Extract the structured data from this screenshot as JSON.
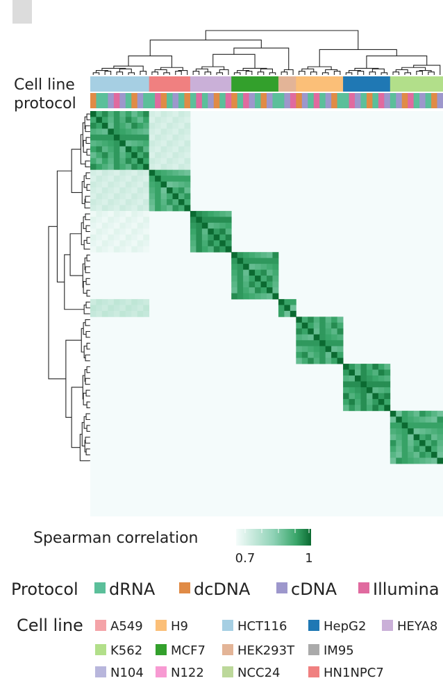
{
  "chart_data": {
    "type": "heatmap",
    "title": "",
    "row_labels": [
      "Cell line",
      "protocol"
    ],
    "colorbar": {
      "label": "Spearman correlation",
      "ticks": [
        "0.7",
        "1"
      ],
      "range": [
        0.7,
        1
      ]
    },
    "clusters": [
      {
        "cell_line": "HCT116",
        "n": 10,
        "intra_mean": 0.93
      },
      {
        "cell_line": "HN1NPC7",
        "n": 7,
        "intra_mean": 0.92
      },
      {
        "cell_line": "HEYA8",
        "n": 7,
        "intra_mean": 0.94
      },
      {
        "cell_line": "MCF7",
        "n": 8,
        "intra_mean": 0.93
      },
      {
        "cell_line": "HEK293T",
        "n": 3,
        "intra_mean": 0.92
      },
      {
        "cell_line": "H9",
        "n": 8,
        "intra_mean": 0.93
      },
      {
        "cell_line": "HepG2",
        "n": 8,
        "intra_mean": 0.94
      },
      {
        "cell_line": "K562",
        "n": 9,
        "intra_mean": 0.92
      }
    ],
    "protocol_sequence": [
      "dcDNA",
      "dRNA",
      "dRNA",
      "cDNA",
      "Illumina",
      "cDNA",
      "dRNA",
      "dcDNA",
      "cDNA",
      "dRNA",
      "dRNA",
      "Illumina",
      "dcDNA",
      "dRNA",
      "cDNA",
      "dRNA",
      "dcDNA",
      "dRNA",
      "Illumina",
      "dRNA",
      "cDNA",
      "dcDNA",
      "dRNA",
      "Illumina",
      "dcDNA",
      "dRNA",
      "Illumina",
      "cDNA",
      "dRNA",
      "dcDNA",
      "cDNA",
      "dRNA",
      "dRNA",
      "cDNA",
      "Illumina",
      "dcDNA",
      "cDNA",
      "dRNA",
      "Illumina",
      "dRNA",
      "cDNA",
      "dcDNA",
      "dRNA",
      "dRNA",
      "Illumina",
      "cDNA",
      "dRNA",
      "dcDNA",
      "dRNA",
      "Illumina",
      "cDNA",
      "dRNA",
      "cDNA",
      "dcDNA",
      "Illumina",
      "dRNA",
      "cDNA",
      "dRNA",
      "dcDNA",
      "cDNA"
    ],
    "legend_protocol": {
      "title": "Protocol",
      "items": [
        {
          "name": "dRNA",
          "color": "#5bbf9a"
        },
        {
          "name": "dcDNA",
          "color": "#e08b46"
        },
        {
          "name": "cDNA",
          "color": "#9d97cc"
        },
        {
          "name": "Illumina",
          "color": "#e06a9f"
        }
      ]
    },
    "legend_cell_line": {
      "title": "Cell line",
      "items": [
        {
          "name": "A549",
          "color": "#f4a3a8"
        },
        {
          "name": "H9",
          "color": "#fbbf78"
        },
        {
          "name": "HCT116",
          "color": "#a6cfe3"
        },
        {
          "name": "HepG2",
          "color": "#1f78b4"
        },
        {
          "name": "HEYA8",
          "color": "#cab0d8"
        },
        {
          "name": "K562",
          "color": "#b2df8a"
        },
        {
          "name": "MCF7",
          "color": "#33a02c"
        },
        {
          "name": "HEK293T",
          "color": "#e3b497"
        },
        {
          "name": "IM95",
          "color": "#aaaaaa"
        },
        {
          "name": "N104",
          "color": "#b8b6dc"
        },
        {
          "name": "N122",
          "color": "#f79ad2"
        },
        {
          "name": "NCC24",
          "color": "#bcd89a"
        },
        {
          "name": "HN1NPC7",
          "color": "#f08080"
        }
      ]
    },
    "off_diagonal": [
      {
        "row_cluster": 0,
        "col_cluster": 1,
        "value": 0.76
      },
      {
        "row_cluster": 1,
        "col_cluster": 0,
        "value": 0.76
      },
      {
        "row_cluster": 2,
        "col_cluster": 0,
        "value": 0.73
      },
      {
        "row_cluster": 4,
        "col_cluster": 0,
        "value": 0.78
      }
    ]
  }
}
